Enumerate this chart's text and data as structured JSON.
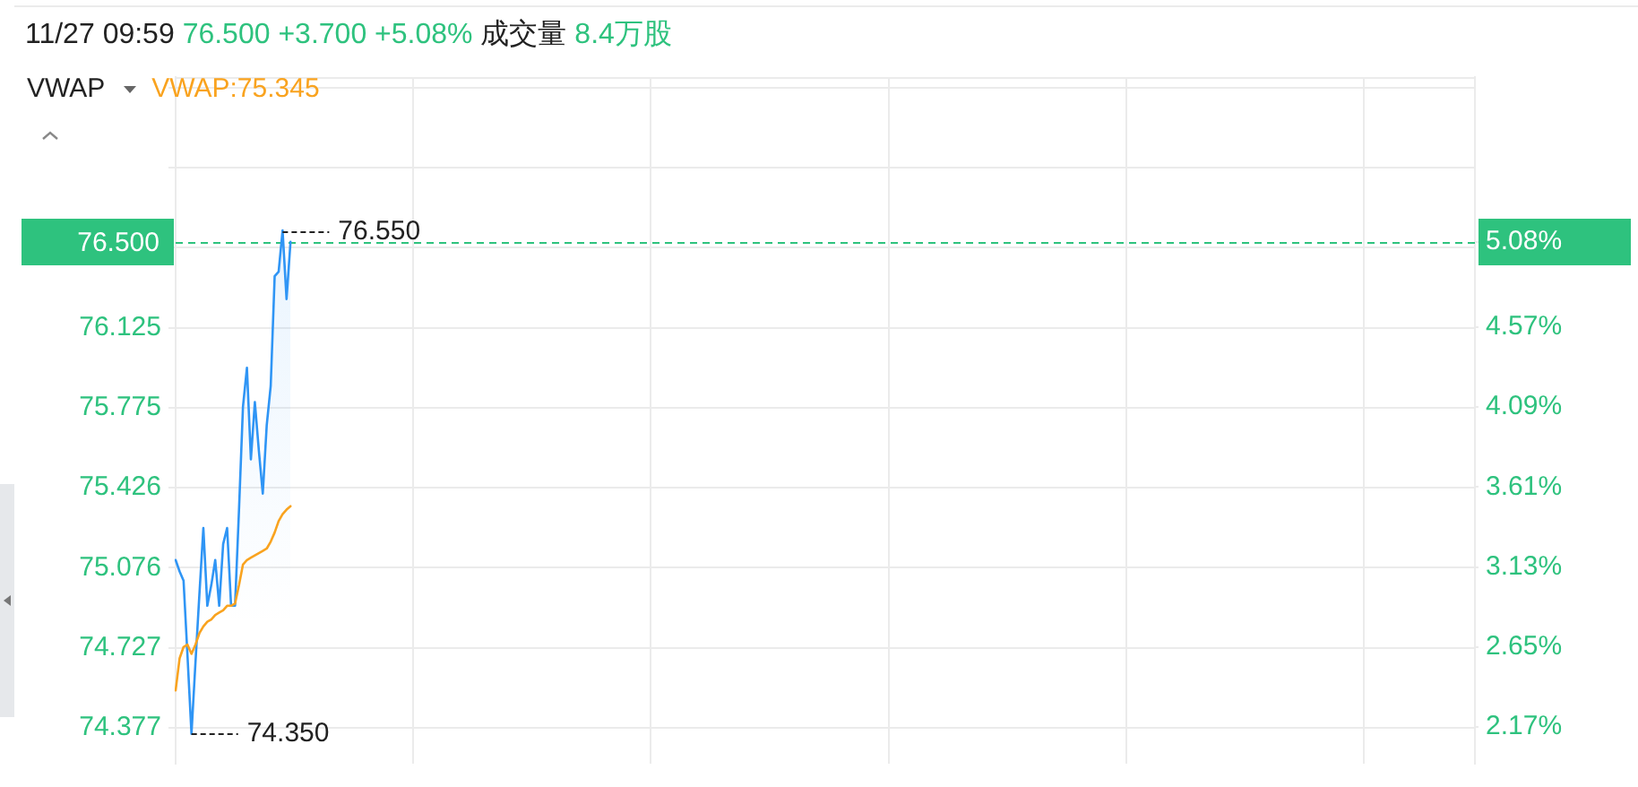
{
  "chart_data": {
    "type": "line",
    "title": "11/27 09:59 76.500 +3.700 +5.08% 成交量 8.4万股",
    "legend_title": "VWAP",
    "legend": "top left",
    "grid": true,
    "categories": [
      null,
      null,
      null,
      null,
      null,
      null,
      null,
      null,
      null,
      null,
      null,
      null,
      null,
      null,
      null,
      null,
      null,
      null,
      null,
      null,
      null,
      null,
      null,
      null,
      null,
      null,
      null,
      null,
      null,
      null,
      null,
      null,
      null,
      null,
      null,
      null,
      null,
      null,
      null,
      null,
      null,
      null,
      null,
      null,
      null,
      null,
      null,
      null,
      null,
      null,
      null,
      null,
      null,
      null,
      null,
      null,
      null,
      null,
      null,
      null,
      null,
      null,
      null,
      null,
      null,
      null,
      null,
      null,
      null,
      null,
      null,
      null,
      null,
      null,
      null,
      null,
      null,
      null,
      null,
      null,
      null,
      null,
      null,
      null,
      null,
      null,
      null,
      null,
      null,
      null,
      null,
      null,
      null,
      null,
      null,
      null,
      null,
      null,
      null,
      null,
      null,
      null,
      null,
      null,
      null,
      null,
      null,
      null,
      null,
      null,
      null,
      null,
      null,
      null,
      null,
      null,
      null,
      null,
      null,
      null,
      null,
      null,
      null,
      null,
      null,
      null,
      null,
      null,
      null,
      null,
      null,
      null,
      null,
      null,
      null,
      null,
      null,
      null,
      null,
      null,
      null,
      null,
      null,
      null,
      null,
      null,
      null,
      null,
      null,
      null,
      null,
      null,
      null,
      null,
      null,
      null,
      null,
      null,
      null,
      null,
      null,
      null,
      null,
      null,
      null,
      null,
      null,
      null,
      null,
      null,
      null,
      null,
      null,
      null,
      null,
      null,
      null,
      null,
      null,
      null,
      null,
      null,
      null,
      null,
      null,
      null,
      null,
      null,
      null,
      null,
      null,
      null,
      null,
      null,
      null,
      null,
      null,
      null,
      null,
      null,
      null,
      null,
      null,
      null,
      null,
      null,
      null,
      null,
      null,
      null,
      null,
      null,
      null,
      null,
      null,
      null,
      null,
      null,
      null,
      null,
      null,
      null,
      null,
      null,
      null,
      null,
      null,
      null,
      null,
      null,
      null,
      null,
      null,
      null,
      null,
      null,
      null,
      null,
      null,
      null,
      null,
      null,
      null,
      null,
      null,
      null,
      null,
      null,
      null,
      null,
      null,
      null,
      null,
      null,
      null,
      null,
      null,
      null,
      null,
      null,
      null,
      null,
      null,
      null,
      null,
      null,
      null,
      null,
      null,
      null,
      null,
      null,
      null,
      null,
      null,
      null,
      null,
      null,
      null,
      null,
      null,
      null,
      null,
      null,
      null,
      null,
      null,
      null,
      null,
      null,
      null,
      null,
      null,
      null,
      null,
      null,
      null,
      null,
      null,
      null,
      null,
      null,
      null,
      null,
      null,
      null,
      null,
      null,
      null,
      null,
      null,
      null,
      null,
      null,
      null,
      null,
      null,
      null,
      null,
      null,
      null,
      null,
      null,
      null,
      null,
      null,
      null,
      null,
      null
    ],
    "series": [
      {
        "type": "area",
        "color": "#2f95f5",
        "values": [
          75.11,
          75.06,
          75.02,
          74.69,
          74.35,
          74.66,
          74.96,
          75.25,
          74.91,
          75,
          75.11,
          74.91,
          75.18,
          75.25,
          74.91,
          74.91,
          75.33,
          75.78,
          75.95,
          75.55,
          75.8,
          75.59,
          75.4,
          75.7,
          75.87,
          76.35,
          76.37,
          76.55,
          76.25,
          76.5,
          null,
          null,
          null,
          null,
          null,
          null,
          null,
          null,
          null,
          null,
          null,
          null,
          null,
          null,
          null,
          null,
          null,
          null,
          null,
          null,
          null,
          null,
          null,
          null,
          null,
          null,
          null,
          null,
          null,
          null,
          null,
          null,
          null,
          null,
          null,
          null,
          null,
          null,
          null,
          null,
          null,
          null,
          null,
          null,
          null,
          null,
          null,
          null,
          null,
          null,
          null,
          null,
          null,
          null,
          null,
          null,
          null,
          null,
          null,
          null,
          null,
          null,
          null,
          null,
          null,
          null,
          null,
          null,
          null,
          null,
          null,
          null,
          null,
          null,
          null,
          null,
          null,
          null,
          null,
          null,
          null,
          null,
          null,
          null,
          null,
          null,
          null,
          null,
          null,
          null,
          null,
          null,
          null,
          null,
          null,
          null,
          null,
          null,
          null,
          null,
          null,
          null,
          null,
          null,
          null,
          null,
          null,
          null,
          null,
          null,
          null,
          null,
          null,
          null,
          null,
          null,
          null,
          null,
          null,
          null,
          null,
          null,
          null,
          null,
          null,
          null,
          null,
          null,
          null,
          null,
          null,
          null,
          null,
          null,
          null,
          null,
          null,
          null,
          null,
          null,
          null,
          null,
          null,
          null,
          null,
          null,
          null,
          null,
          null,
          null,
          null,
          null,
          null,
          null,
          null,
          null,
          null,
          null,
          null,
          null,
          null,
          null,
          null,
          null,
          null,
          null,
          null,
          null,
          null,
          null,
          null,
          null,
          null,
          null,
          null,
          null,
          null,
          null,
          null,
          null,
          null,
          null,
          null,
          null,
          null,
          null,
          null,
          null,
          null,
          null,
          null,
          null,
          null,
          null,
          null,
          null,
          null,
          null,
          null,
          null,
          null,
          null,
          null,
          null,
          null,
          null,
          null,
          null,
          null,
          null,
          null,
          null,
          null,
          null,
          null,
          null,
          null,
          null,
          null,
          null,
          null,
          null,
          null,
          null,
          null,
          null,
          null,
          null,
          null,
          null,
          null,
          null,
          null,
          null,
          null,
          null,
          null,
          null,
          null,
          null,
          null,
          null,
          null,
          null,
          null,
          null,
          null,
          null,
          null,
          null,
          null,
          null,
          null,
          null,
          null,
          null,
          null,
          null,
          null,
          null,
          null,
          null,
          null,
          null,
          null,
          null,
          null,
          null,
          null,
          null,
          null,
          null,
          null,
          null,
          null,
          null,
          null,
          null,
          null,
          null,
          null,
          null,
          null,
          null,
          null,
          null,
          null,
          null,
          null,
          null,
          null,
          null,
          null,
          null,
          null,
          null,
          null,
          null,
          null
        ]
      },
      {
        "name": "VWAP:75.345",
        "color": "#f9a31f",
        "values": [
          74.54,
          74.68,
          74.73,
          74.74,
          74.7,
          74.74,
          74.79,
          74.82,
          74.84,
          74.85,
          74.87,
          74.88,
          74.89,
          74.91,
          74.91,
          74.92,
          75,
          75.09,
          75.11,
          75.12,
          75.13,
          75.14,
          75.15,
          75.16,
          75.19,
          75.23,
          75.28,
          75.31,
          75.33,
          75.345,
          null,
          null,
          null,
          null,
          null,
          null,
          null,
          null,
          null,
          null,
          null,
          null,
          null,
          null,
          null,
          null,
          null,
          null,
          null,
          null,
          null,
          null,
          null,
          null,
          null,
          null,
          null,
          null,
          null,
          null,
          null,
          null,
          null,
          null,
          null,
          null,
          null,
          null,
          null,
          null,
          null,
          null,
          null,
          null,
          null,
          null,
          null,
          null,
          null,
          null,
          null,
          null,
          null,
          null,
          null,
          null,
          null,
          null,
          null,
          null,
          null,
          null,
          null,
          null,
          null,
          null,
          null,
          null,
          null,
          null,
          null,
          null,
          null,
          null,
          null,
          null,
          null,
          null,
          null,
          null,
          null,
          null,
          null,
          null,
          null,
          null,
          null,
          null,
          null,
          null,
          null,
          null,
          null,
          null,
          null,
          null,
          null,
          null,
          null,
          null,
          null,
          null,
          null,
          null,
          null,
          null,
          null,
          null,
          null,
          null,
          null,
          null,
          null,
          null,
          null,
          null,
          null,
          null,
          null,
          null,
          null,
          null,
          null,
          null,
          null,
          null,
          null,
          null,
          null,
          null,
          null,
          null,
          null,
          null,
          null,
          null,
          null,
          null,
          null,
          null,
          null,
          null,
          null,
          null,
          null,
          null,
          null,
          null,
          null,
          null,
          null,
          null,
          null,
          null,
          null,
          null,
          null,
          null,
          null,
          null,
          null,
          null,
          null,
          null,
          null,
          null,
          null,
          null,
          null,
          null,
          null,
          null,
          null,
          null,
          null,
          null,
          null,
          null,
          null,
          null,
          null,
          null,
          null,
          null,
          null,
          null,
          null,
          null,
          null,
          null,
          null,
          null,
          null,
          null,
          null,
          null,
          null,
          null,
          null,
          null,
          null,
          null,
          null,
          null,
          null,
          null,
          null,
          null,
          null,
          null,
          null,
          null,
          null,
          null,
          null,
          null,
          null,
          null,
          null,
          null,
          null,
          null,
          null,
          null,
          null,
          null,
          null,
          null,
          null,
          null,
          null,
          null,
          null,
          null,
          null,
          null,
          null,
          null,
          null,
          null,
          null,
          null,
          null,
          null,
          null,
          null,
          null,
          null,
          null,
          null,
          null,
          null,
          null,
          null,
          null,
          null,
          null,
          null,
          null,
          null,
          null,
          null,
          null,
          null,
          null,
          null,
          null,
          null,
          null,
          null,
          null,
          null,
          null,
          null,
          null,
          null,
          null,
          null,
          null,
          null,
          null,
          null,
          null,
          null,
          null,
          null,
          null,
          null,
          null,
          null,
          null,
          null,
          null,
          null,
          null,
          null,
          null,
          null,
          null
        ]
      }
    ],
    "ylim": [
      74.22,
      77.22
    ],
    "yticks": [
      74.377,
      74.727,
      75.076,
      75.426,
      75.775,
      76.125,
      {
        "value": 76.475,
        "label": null
      },
      {
        "value": 76.824,
        "label": null
      },
      {
        "value": 77.174,
        "label": null
      }
    ],
    "y2lim": [
      1.95,
      6.07
    ],
    "y2ticks": [
      {
        "value": 2.17,
        "label": "2.17%"
      },
      {
        "value": 2.65,
        "label": "2.65%"
      },
      {
        "value": 3.13,
        "label": "3.13%"
      },
      {
        "value": 3.61,
        "label": "3.61%"
      },
      {
        "value": 4.09,
        "label": "4.09%"
      },
      {
        "value": 4.57,
        "label": "4.57%"
      },
      {
        "value": 5.08,
        "label": "5.08%"
      }
    ],
    "ref_lines": [
      {
        "axis": "y",
        "value": 76.5,
        "label": "76.500",
        "color": "#2ec27e",
        "line_style": "dashed"
      }
    ],
    "annotations": [
      "76.550",
      "74.350"
    ]
  }
}
